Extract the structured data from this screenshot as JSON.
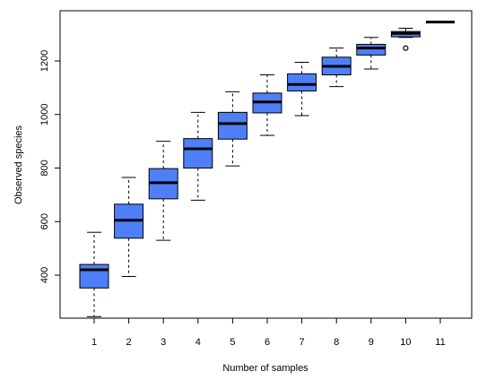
{
  "chart_data": {
    "type": "boxplot",
    "xlabel": "Number of samples",
    "ylabel": "Observed species",
    "categories": [
      "1",
      "2",
      "3",
      "4",
      "5",
      "6",
      "7",
      "8",
      "9",
      "10",
      "11"
    ],
    "y_ticks": [
      400,
      600,
      800,
      1000,
      1200
    ],
    "ylim": [
      220,
      1375
    ],
    "box_color": "#4f7ff7",
    "boxes": [
      {
        "category": "1",
        "whisker_low": 245,
        "q1": 352,
        "median": 420,
        "q3": 440,
        "whisker_high": 560,
        "outliers": []
      },
      {
        "category": "2",
        "whisker_low": 395,
        "q1": 538,
        "median": 605,
        "q3": 665,
        "whisker_high": 765,
        "outliers": []
      },
      {
        "category": "3",
        "whisker_low": 530,
        "q1": 685,
        "median": 745,
        "q3": 798,
        "whisker_high": 900,
        "outliers": []
      },
      {
        "category": "4",
        "whisker_low": 680,
        "q1": 800,
        "median": 872,
        "q3": 910,
        "whisker_high": 1008,
        "outliers": []
      },
      {
        "category": "5",
        "whisker_low": 808,
        "q1": 908,
        "median": 966,
        "q3": 1008,
        "whisker_high": 1085,
        "outliers": []
      },
      {
        "category": "6",
        "whisker_low": 922,
        "q1": 1006,
        "median": 1047,
        "q3": 1080,
        "whisker_high": 1148,
        "outliers": []
      },
      {
        "category": "7",
        "whisker_low": 996,
        "q1": 1088,
        "median": 1112,
        "q3": 1152,
        "whisker_high": 1195,
        "outliers": []
      },
      {
        "category": "8",
        "whisker_low": 1104,
        "q1": 1148,
        "median": 1180,
        "q3": 1214,
        "whisker_high": 1248,
        "outliers": []
      },
      {
        "category": "9",
        "whisker_low": 1170,
        "q1": 1222,
        "median": 1248,
        "q3": 1262,
        "whisker_high": 1288,
        "outliers": []
      },
      {
        "category": "10",
        "whisker_low": 1288,
        "q1": 1290,
        "median": 1303,
        "q3": 1310,
        "whisker_high": 1322,
        "outliers": [
          1248
        ]
      },
      {
        "category": "11",
        "whisker_low": 1345,
        "q1": 1345,
        "median": 1345,
        "q3": 1345,
        "whisker_high": 1345,
        "outliers": []
      }
    ]
  }
}
